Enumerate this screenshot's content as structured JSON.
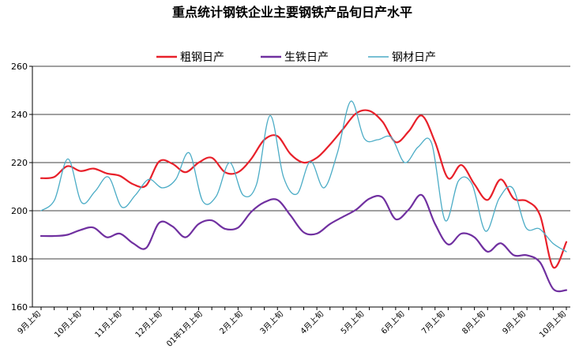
{
  "chart_data": {
    "type": "line",
    "title": "重点统计钢铁企业主要钢铁产品旬日产水平",
    "xlabel": "",
    "ylabel": "",
    "ylim": [
      160,
      260
    ],
    "yticks": [
      160,
      180,
      200,
      220,
      240,
      260
    ],
    "grid": true,
    "legend_position": "top",
    "x_tick_labels": [
      "9月上旬",
      "10月上旬",
      "11月上旬",
      "12月上旬",
      "01年1月上旬",
      "2月上旬",
      "3月上旬",
      "4月上旬",
      "5月上旬",
      "6月上旬",
      "7月上旬",
      "8月上旬",
      "9月上旬",
      "10月上旬"
    ],
    "series": [
      {
        "name": "粗钢日产",
        "color": "#e8202a",
        "values": [
          213.5,
          214,
          218.5,
          216.5,
          217.5,
          215.5,
          214.5,
          211,
          210.5,
          220.5,
          219.5,
          216,
          220,
          222,
          216,
          216,
          221.5,
          229.5,
          231,
          223.5,
          220,
          222,
          227.5,
          234,
          240.5,
          241.5,
          237,
          228.5,
          233,
          239.5,
          228.5,
          213.5,
          219,
          211,
          204.5,
          213,
          205,
          204,
          198,
          176.5,
          187
        ]
      },
      {
        "name": "生铁日产",
        "color": "#7030a0",
        "values": [
          189.5,
          189.5,
          190,
          192,
          193,
          189,
          190.5,
          186.5,
          184.5,
          195,
          193.5,
          189,
          194.5,
          196,
          192.5,
          193,
          199.5,
          203.5,
          204.5,
          198,
          191,
          190.5,
          194.5,
          197.5,
          200.5,
          205,
          205.5,
          196.5,
          200.5,
          206.5,
          194.5,
          186,
          190.5,
          189,
          183,
          186.5,
          181.5,
          181.5,
          178.5,
          167.5,
          167
        ]
      },
      {
        "name": "钢材日产",
        "color": "#4bacc6",
        "values": [
          200,
          204.5,
          221.5,
          203.5,
          208,
          214,
          201.5,
          206.5,
          213,
          209.5,
          213,
          224,
          204,
          206,
          220,
          206.5,
          211,
          239.5,
          214,
          207,
          220.5,
          209.5,
          224,
          245.5,
          230,
          229.5,
          230.5,
          220,
          226.5,
          228,
          196,
          212.5,
          211,
          191.5,
          205,
          209.5,
          193,
          192.5,
          186.5,
          183
        ]
      }
    ]
  }
}
